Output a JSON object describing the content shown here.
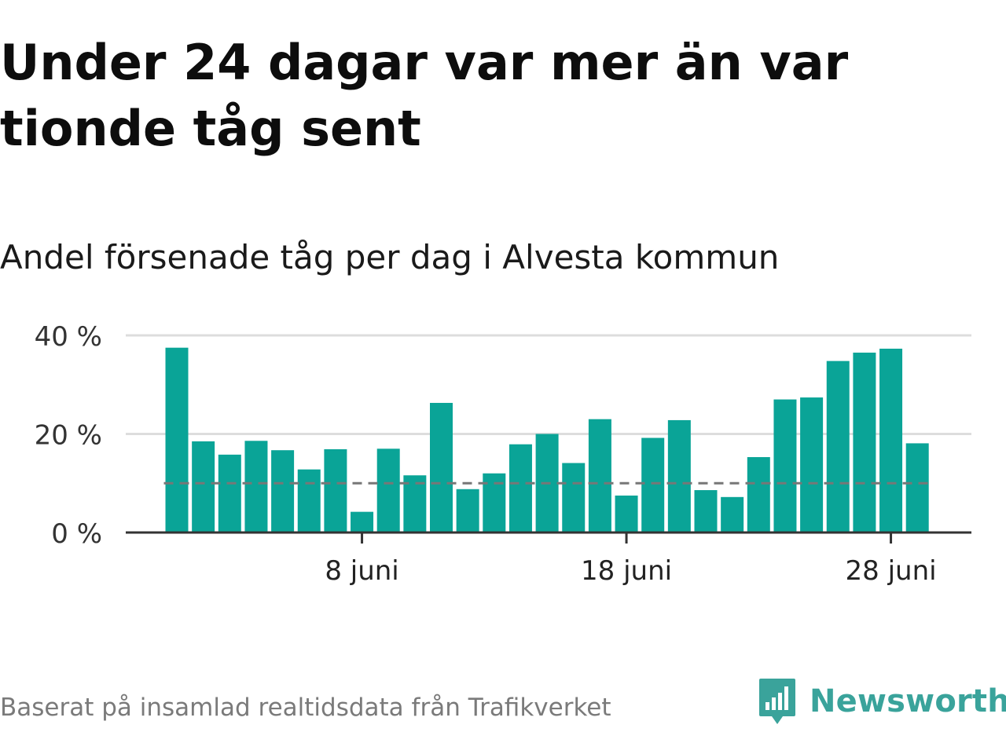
{
  "title": "Under 24 dagar var mer än var tionde tåg sent",
  "subtitle": "Andel försenade tåg per dag i Alvesta kommun",
  "footer": "Baserat på insamlad realtidsdata från Trafikverket",
  "brand": {
    "name": "Newsworthy",
    "icon": "newsworthy-logo-icon",
    "color": "#3aa39b"
  },
  "colors": {
    "bar": "#0aa497",
    "reference_line": "#777777",
    "grid": "#dddddd",
    "axis": "#333333"
  },
  "chart_data": {
    "type": "bar",
    "x": [
      "1 juni",
      "2 juni",
      "3 juni",
      "4 juni",
      "5 juni",
      "6 juni",
      "7 juni",
      "8 juni",
      "9 juni",
      "10 juni",
      "11 juni",
      "12 juni",
      "13 juni",
      "14 juni",
      "15 juni",
      "16 juni",
      "17 juni",
      "18 juni",
      "19 juni",
      "20 juni",
      "21 juni",
      "22 juni",
      "23 juni",
      "24 juni",
      "25 juni",
      "26 juni",
      "27 juni",
      "28 juni",
      "29 juni"
    ],
    "values": [
      37.5,
      18.5,
      15.8,
      18.6,
      16.7,
      12.8,
      16.9,
      4.2,
      17.0,
      11.6,
      26.3,
      8.8,
      12.0,
      17.9,
      20.0,
      14.1,
      23.0,
      7.5,
      19.2,
      22.8,
      8.6,
      7.2,
      15.3,
      27.0,
      27.4,
      34.8,
      36.5,
      37.3,
      18.1
    ],
    "ylim": [
      0,
      40
    ],
    "yticks": [
      0,
      20,
      40
    ],
    "ytick_labels": [
      "0 %",
      "20 %",
      "40 %"
    ],
    "xticks": [
      "8 juni",
      "18 juni",
      "28 juni"
    ],
    "reference_line": 10,
    "grid": true
  }
}
